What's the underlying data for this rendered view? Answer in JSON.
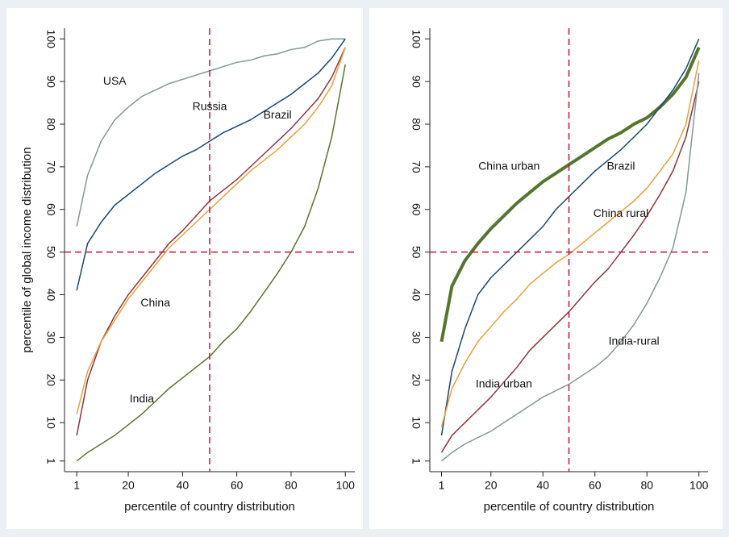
{
  "chart_data": [
    {
      "type": "line",
      "xlabel": "percentile of country distribution",
      "ylabel": "percentile of global income distribution",
      "x": [
        1,
        5,
        10,
        15,
        20,
        25,
        30,
        35,
        40,
        45,
        50,
        55,
        60,
        65,
        70,
        75,
        80,
        85,
        90,
        95,
        100
      ],
      "xlim": [
        -3.5,
        103.5
      ],
      "ylim": [
        -1.5,
        102.5
      ],
      "xticks": [
        1,
        20,
        40,
        60,
        80,
        100
      ],
      "yticks": [
        1,
        10,
        20,
        30,
        40,
        50,
        60,
        70,
        80,
        90,
        100
      ],
      "reference_lines": {
        "x": 50,
        "y": 50,
        "color": "#c0143c"
      },
      "series": [
        {
          "name": "USA",
          "color": "#7f9a96",
          "values": [
            56,
            68,
            76,
            81,
            84,
            86.5,
            88,
            89.5,
            90.5,
            91.5,
            92.5,
            93.5,
            94.5,
            95,
            96,
            96.5,
            97.5,
            98,
            99.5,
            100,
            100
          ]
        },
        {
          "name": "Russia",
          "color": "#1a476f",
          "values": [
            41,
            52,
            57,
            61,
            63.5,
            66,
            68.5,
            70.5,
            72.5,
            74,
            76,
            78,
            79.5,
            81,
            83,
            85,
            87,
            89.5,
            92,
            95.5,
            100
          ]
        },
        {
          "name": "Brazil",
          "color": "#90353b",
          "values": [
            7,
            20,
            29,
            35,
            40,
            44,
            48,
            52,
            55,
            58.5,
            62,
            64.5,
            67,
            70,
            73,
            76,
            79,
            82.5,
            86,
            91,
            98
          ]
        },
        {
          "name": "China",
          "color": "#e8a03c",
          "values": [
            12,
            22,
            29,
            34,
            39,
            43,
            47,
            51,
            54,
            57,
            60,
            63,
            66,
            69,
            71.5,
            74,
            77,
            80,
            84,
            89,
            98
          ]
        },
        {
          "name": "India",
          "color": "#55752f",
          "values": [
            1,
            3,
            5,
            7,
            9.5,
            12,
            15,
            18,
            20.5,
            23,
            25.5,
            29,
            32,
            36,
            40.5,
            45,
            50,
            56,
            65,
            77,
            94
          ]
        }
      ]
    },
    {
      "type": "line",
      "xlabel": "percentile of country distribution",
      "x": [
        1,
        5,
        10,
        15,
        20,
        25,
        30,
        35,
        40,
        45,
        50,
        55,
        60,
        65,
        70,
        75,
        80,
        85,
        90,
        95,
        100
      ],
      "xlim": [
        -3.5,
        103.5
      ],
      "ylim": [
        -1.5,
        102.5
      ],
      "xticks": [
        1,
        20,
        40,
        60,
        80,
        100
      ],
      "yticks": [
        1,
        10,
        20,
        30,
        40,
        50,
        60,
        70,
        80,
        90,
        100
      ],
      "reference_lines": {
        "x": 50,
        "y": 50,
        "color": "#c0143c"
      },
      "series": [
        {
          "name": "China urban",
          "color": "#55752f",
          "width": 4,
          "values": [
            29,
            42,
            48,
            52,
            55.5,
            58.5,
            61.5,
            64,
            66.5,
            68.5,
            70.5,
            72.5,
            74.5,
            76.5,
            78,
            80,
            81.5,
            84,
            87,
            91,
            98
          ]
        },
        {
          "name": "Brazil",
          "color": "#1a476f",
          "values": [
            7,
            22,
            32,
            40,
            44,
            47,
            50,
            53,
            56,
            60,
            63,
            66,
            69,
            71.5,
            74,
            77,
            80,
            84,
            88,
            93,
            100
          ]
        },
        {
          "name": "China rural",
          "color": "#e8a03c",
          "values": [
            9,
            18,
            24,
            29,
            32.5,
            36,
            39,
            42.5,
            45,
            47.5,
            49.5,
            52,
            54.5,
            57,
            59.5,
            62,
            65,
            69,
            73,
            80,
            95
          ]
        },
        {
          "name": "India urban",
          "color": "#90353b",
          "values": [
            3,
            7,
            10,
            13,
            16,
            19.5,
            23,
            27,
            30,
            33,
            36,
            39.5,
            43,
            46,
            50,
            54,
            58.5,
            63.5,
            69,
            77,
            90
          ]
        },
        {
          "name": "India-rural",
          "color": "#7f9a96",
          "values": [
            1,
            3,
            5,
            6.5,
            8,
            10,
            12,
            14,
            16,
            17.5,
            19,
            21,
            23,
            25.5,
            29,
            33,
            38,
            44,
            51,
            64,
            92
          ]
        }
      ]
    }
  ]
}
